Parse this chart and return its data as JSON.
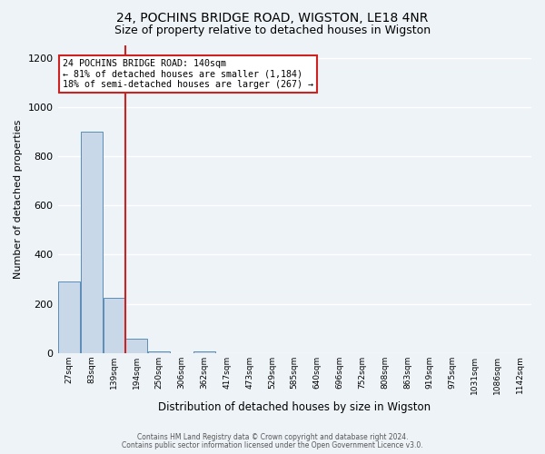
{
  "title": "24, POCHINS BRIDGE ROAD, WIGSTON, LE18 4NR",
  "subtitle": "Size of property relative to detached houses in Wigston",
  "xlabel": "Distribution of detached houses by size in Wigston",
  "ylabel": "Number of detached properties",
  "footnote1": "Contains HM Land Registry data © Crown copyright and database right 2024.",
  "footnote2": "Contains public sector information licensed under the Open Government Licence v3.0.",
  "categories": [
    "27sqm",
    "83sqm",
    "139sqm",
    "194sqm",
    "250sqm",
    "306sqm",
    "362sqm",
    "417sqm",
    "473sqm",
    "529sqm",
    "585sqm",
    "640sqm",
    "696sqm",
    "752sqm",
    "808sqm",
    "863sqm",
    "919sqm",
    "975sqm",
    "1031sqm",
    "1086sqm",
    "1142sqm"
  ],
  "values": [
    290,
    900,
    225,
    57,
    8,
    0,
    8,
    0,
    0,
    0,
    0,
    0,
    0,
    0,
    0,
    0,
    0,
    0,
    0,
    0,
    0
  ],
  "bar_color": "#c8d8e8",
  "bar_edge_color": "#5b8db8",
  "marker_color": "#cc2222",
  "annotation_text": "24 POCHINS BRIDGE ROAD: 140sqm\n← 81% of detached houses are smaller (1,184)\n18% of semi-detached houses are larger (267) →",
  "annotation_box_color": "#ffffff",
  "annotation_box_edge": "#cc2222",
  "ylim": [
    0,
    1250
  ],
  "background_color": "#eef3f8",
  "grid_color": "#ffffff",
  "title_fontsize": 10,
  "subtitle_fontsize": 9,
  "ylabel_fontsize": 8,
  "xlabel_fontsize": 8.5,
  "footnote_fontsize": 5.5
}
